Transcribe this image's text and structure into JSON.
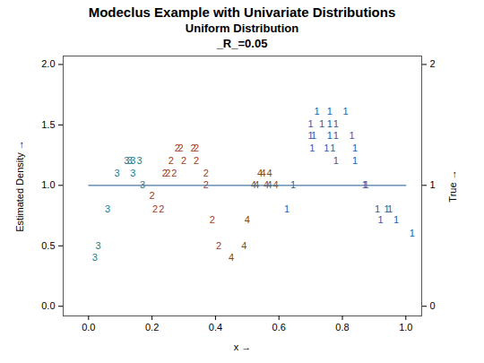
{
  "chart_data": {
    "type": "scatter",
    "title": "Modeclus Example with Univariate Distributions",
    "subtitle": [
      "Uniform Distribution",
      "_R_=0.05"
    ],
    "xlabel": "x",
    "ylabel": "Estimated Density",
    "y2label": "True",
    "xlim": [
      -0.08,
      1.05
    ],
    "ylim": [
      -0.08,
      2.07
    ],
    "y2lim": [
      -0.08,
      2.07
    ],
    "xticks": [
      {
        "value": 0,
        "label": "0.0"
      },
      {
        "value": 0.2,
        "label": "0.2"
      },
      {
        "value": 0.4,
        "label": "0.4"
      },
      {
        "value": 0.6,
        "label": "0.6"
      },
      {
        "value": 0.8,
        "label": "0.8"
      },
      {
        "value": 1,
        "label": "1.0"
      }
    ],
    "yticks": [
      {
        "value": 0,
        "label": "0.0"
      },
      {
        "value": 0.5,
        "label": "0.5"
      },
      {
        "value": 1,
        "label": "1.0"
      },
      {
        "value": 1.5,
        "label": "1.5"
      },
      {
        "value": 2,
        "label": "2.0"
      }
    ],
    "y2ticks": [
      0,
      1,
      2
    ],
    "grid": false,
    "series": [
      {
        "name": "3",
        "color": "#1f7a8c",
        "marker": "label",
        "x": [
          0.02,
          0.03,
          0.06,
          0.09,
          0.12,
          0.13,
          0.14,
          0.16,
          0.14,
          0.17
        ],
        "values": [
          0.4,
          0.5,
          0.8,
          1.1,
          1.2,
          1.2,
          1.2,
          1.2,
          1.1,
          1.0
        ]
      },
      {
        "name": "2",
        "color": "#a23a1e",
        "marker": "label",
        "x": [
          0.2,
          0.21,
          0.23,
          0.24,
          0.25,
          0.27,
          0.26,
          0.3,
          0.34,
          0.28,
          0.29,
          0.33,
          0.34,
          0.37,
          0.37,
          0.39,
          0.41
        ],
        "values": [
          0.91,
          0.8,
          0.8,
          1.1,
          1.1,
          1.1,
          1.2,
          1.2,
          1.2,
          1.31,
          1.31,
          1.31,
          1.31,
          1.1,
          1.0,
          0.71,
          0.5
        ]
      },
      {
        "name": "4",
        "color": "#7f4a1a",
        "marker": "label",
        "x": [
          0.45,
          0.49,
          0.5,
          0.54,
          0.55,
          0.57,
          0.52,
          0.53,
          0.56,
          0.57,
          0.59
        ],
        "values": [
          0.4,
          0.5,
          0.71,
          1.1,
          1.1,
          1.1,
          1.0,
          1.0,
          1.0,
          1.0,
          1.0
        ]
      },
      {
        "name": "1",
        "color": "#2a5ea8",
        "marker": "label",
        "x": [
          0.645,
          0.625,
          0.72,
          0.76,
          0.81,
          0.7,
          0.735,
          0.76,
          0.78,
          0.7,
          0.71,
          0.76,
          0.78,
          0.83,
          0.705,
          0.75,
          0.77,
          0.84,
          0.78,
          0.84,
          0.87,
          0.875,
          0.91,
          0.94,
          0.95,
          0.92,
          0.97,
          1.02
        ],
        "values": [
          1.0,
          0.8,
          1.61,
          1.61,
          1.61,
          1.51,
          1.51,
          1.51,
          1.51,
          1.41,
          1.41,
          1.41,
          1.41,
          1.41,
          1.31,
          1.31,
          1.31,
          1.31,
          1.2,
          1.2,
          1.0,
          1.0,
          0.8,
          0.8,
          0.8,
          0.71,
          0.71,
          0.6
        ]
      },
      {
        "name": "True",
        "type": "line",
        "axis": "y2",
        "color": "#4a78a8",
        "x": [
          0,
          1
        ],
        "values": [
          1,
          1
        ]
      }
    ]
  }
}
